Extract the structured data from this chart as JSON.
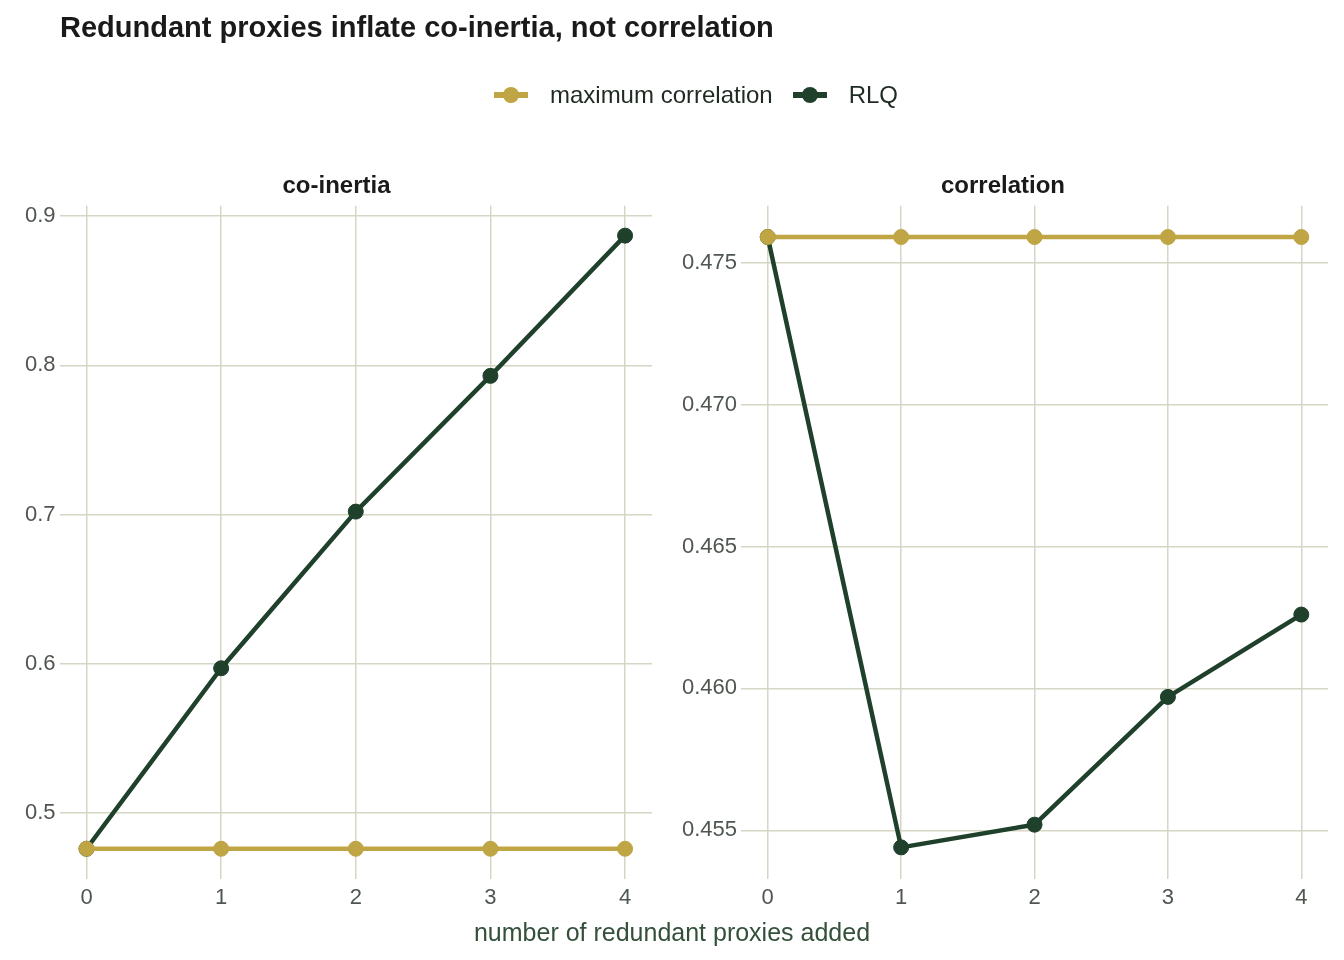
{
  "chart_data": [
    {
      "type": "line",
      "title": "Redundant proxies inflate co-inertia, not correlation",
      "subtitle": "co-inertia",
      "xlabel": "number of redundant proxies added",
      "x": [
        0,
        1,
        2,
        3,
        4
      ],
      "series": [
        {
          "name": "maximum correlation",
          "color": "#bfa543",
          "values": [
            0.476,
            0.476,
            0.476,
            0.476,
            0.476
          ]
        },
        {
          "name": "RLQ",
          "color": "#1f402b",
          "values": [
            0.476,
            0.597,
            0.702,
            0.793,
            0.887
          ]
        }
      ],
      "xlim": [
        -0.2,
        4.2
      ],
      "xticks": [
        0,
        1,
        2,
        3,
        4
      ],
      "ylim": [
        0.456,
        0.907
      ],
      "yticks": [
        0.5,
        0.6,
        0.7,
        0.8,
        0.9
      ],
      "grid": true,
      "legend": "top",
      "marker": "circle"
    },
    {
      "type": "line",
      "subtitle": "correlation",
      "x": [
        0,
        1,
        2,
        3,
        4
      ],
      "series": [
        {
          "color": "#bfa543",
          "values": [
            0.4759,
            0.4759,
            0.4759,
            0.4759,
            0.4759
          ]
        },
        {
          "color": "#1f402b",
          "values": [
            0.4759,
            0.4544,
            0.4552,
            0.4597,
            0.4626
          ]
        }
      ],
      "xlim": [
        -0.2,
        4.2
      ],
      "xticks": [
        0,
        1,
        2,
        3,
        4
      ],
      "ylim": [
        0.4533,
        0.477
      ],
      "yticks": [
        0.455,
        {
          "value": 0.46,
          "label": "0.460"
        },
        0.465,
        {
          "value": 0.47,
          "label": "0.470"
        },
        0.475
      ],
      "grid": true,
      "marker": "circle"
    }
  ]
}
